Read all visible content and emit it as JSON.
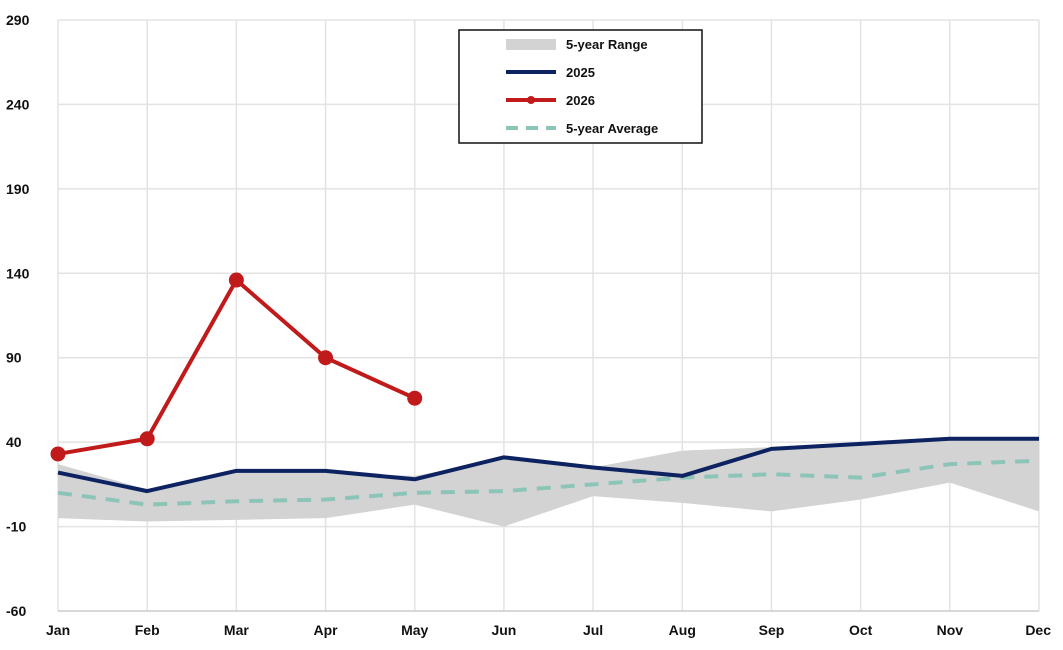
{
  "chart_data": {
    "type": "line",
    "title": "",
    "xlabel": "",
    "ylabel": "",
    "categories": [
      "Jan",
      "Feb",
      "Mar",
      "Apr",
      "May",
      "Jun",
      "Jul",
      "Aug",
      "Sep",
      "Oct",
      "Nov",
      "Dec"
    ],
    "ylim": [
      -60,
      290
    ],
    "yticks": [
      -60,
      -10,
      40,
      90,
      140,
      190,
      240,
      290
    ],
    "grid": true,
    "legend_position": "top-center",
    "range": {
      "name": "5-year Range",
      "color": "#d3d3d3",
      "upper": [
        27,
        12,
        23,
        22,
        20,
        30,
        25,
        35,
        37,
        39,
        43,
        43
      ],
      "lower": [
        -5,
        -7,
        -6,
        -5,
        3,
        -10,
        8,
        4,
        -1,
        6,
        16,
        -1
      ]
    },
    "series": [
      {
        "name": "2025",
        "color": "#0d2260",
        "style": "solid",
        "values": [
          22,
          11,
          23,
          23,
          18,
          31,
          25,
          20,
          36,
          39,
          42,
          42
        ]
      },
      {
        "name": "2026",
        "color": "#c01a1a",
        "style": "solid-markers",
        "values": [
          33,
          42,
          136,
          90,
          66,
          null,
          null,
          null,
          null,
          null,
          null,
          null
        ]
      },
      {
        "name": "5-year Average",
        "color": "#8cc5b8",
        "style": "dashed",
        "values": [
          10,
          3,
          5,
          6,
          10,
          11,
          15,
          19,
          21,
          19,
          27,
          29
        ]
      }
    ]
  }
}
